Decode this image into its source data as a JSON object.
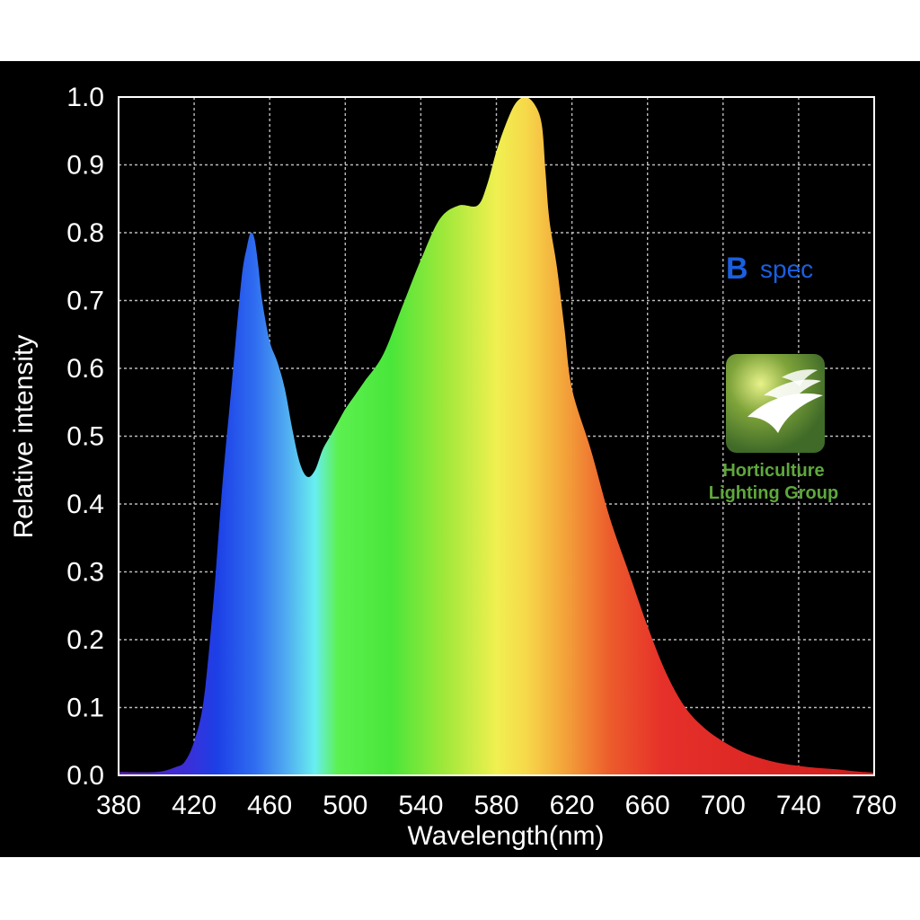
{
  "chart_data": {
    "type": "area",
    "title": "",
    "xlabel": "Wavelength(nm)",
    "ylabel": "Relative intensity",
    "xlim": [
      380,
      780
    ],
    "ylim": [
      0,
      1.0
    ],
    "x_ticks": [
      "380",
      "420",
      "460",
      "500",
      "540",
      "580",
      "620",
      "660",
      "700",
      "740",
      "780"
    ],
    "y_ticks": [
      "0.0",
      "0.1",
      "0.2",
      "0.3",
      "0.4",
      "0.5",
      "0.6",
      "0.7",
      "0.8",
      "0.9",
      "1.0"
    ],
    "grid": true,
    "series": [
      {
        "x": [
          380,
          400,
          410,
          415,
          420,
          425,
          430,
          435,
          440,
          445,
          448,
          450,
          452,
          454,
          456,
          460,
          464,
          468,
          472,
          476,
          480,
          484,
          488,
          492,
          496,
          500,
          505,
          510,
          520,
          530,
          540,
          550,
          560,
          570,
          575,
          580,
          585,
          590,
          595,
          600,
          604,
          606,
          608,
          612,
          616,
          620,
          630,
          640,
          650,
          660,
          670,
          680,
          690,
          700,
          710,
          720,
          730,
          740,
          750,
          760,
          770,
          780
        ],
        "y": [
          0.005,
          0.005,
          0.012,
          0.02,
          0.05,
          0.11,
          0.25,
          0.43,
          0.58,
          0.73,
          0.78,
          0.8,
          0.79,
          0.75,
          0.7,
          0.64,
          0.61,
          0.57,
          0.51,
          0.46,
          0.44,
          0.45,
          0.48,
          0.5,
          0.52,
          0.54,
          0.56,
          0.58,
          0.62,
          0.69,
          0.76,
          0.82,
          0.84,
          0.84,
          0.87,
          0.92,
          0.96,
          0.99,
          1.0,
          0.99,
          0.96,
          0.89,
          0.82,
          0.75,
          0.66,
          0.57,
          0.48,
          0.38,
          0.3,
          0.22,
          0.15,
          0.1,
          0.07,
          0.05,
          0.035,
          0.025,
          0.018,
          0.014,
          0.011,
          0.009,
          0.006,
          0.004
        ]
      }
    ],
    "colors": {
      "background": "#000000",
      "grid": "#bbbbbb",
      "text": "#ffffff",
      "spec_label": "#1a5fe0",
      "brand_green": "#4e7a2e",
      "brand_text": "#5fa83c"
    }
  },
  "annotations": {
    "spec_bold": "B",
    "spec_text": "spec",
    "brand_line1": "Horticulture",
    "brand_line2": "Lighting Group"
  }
}
